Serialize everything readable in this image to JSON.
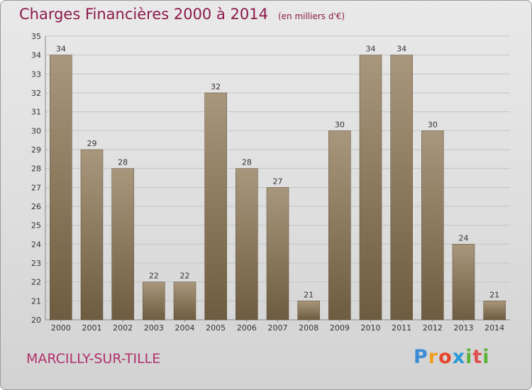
{
  "header": {
    "title": "Charges Financières 2000 à 2014",
    "subtitle": "(en milliers d'€)"
  },
  "footer": {
    "commune": "MARCILLY-SUR-TILLE",
    "logo_text": "Proxiti"
  },
  "colors": {
    "bar_top": "#a8977c",
    "bar_bottom": "#6e5c40",
    "title": "#8b1a4a",
    "commune": "#b0306a"
  },
  "chart_data": {
    "type": "bar",
    "title": "Charges Financières 2000 à 2014",
    "subtitle": "(en milliers d'€)",
    "categories": [
      "2000",
      "2001",
      "2002",
      "2003",
      "2004",
      "2005",
      "2006",
      "2007",
      "2008",
      "2009",
      "2010",
      "2011",
      "2012",
      "2013",
      "2014"
    ],
    "values": [
      34,
      29,
      28,
      22,
      22,
      32,
      28,
      27,
      21,
      30,
      34,
      34,
      30,
      24,
      21
    ],
    "ylim": [
      20,
      35
    ],
    "yticks": [
      20,
      21,
      22,
      23,
      24,
      25,
      26,
      27,
      28,
      29,
      30,
      31,
      32,
      33,
      34,
      35
    ],
    "grid": true
  }
}
